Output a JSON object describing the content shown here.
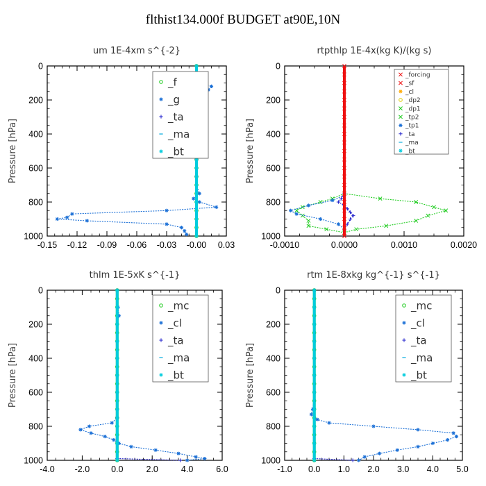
{
  "figure": {
    "title": "flthist134.000f  BUDGET at90E,10N"
  },
  "colors": {
    "green": "#22cc22",
    "blue": "#1a6fd6",
    "lightblue": "#00aadd",
    "navy": "#2222cc",
    "cyan": "#00ccdd",
    "red": "#ee1111",
    "orange": "#ffaa00",
    "yellow": "#ddcc00"
  },
  "chart_data": [
    {
      "type": "line",
      "title": "um   1E-4xm s^{-2}",
      "ylabel": "Pressure [hPa]",
      "xlim": [
        -0.15,
        0.03
      ],
      "ylim": [
        1000,
        0
      ],
      "xticks": [
        -0.15,
        -0.12,
        -0.09,
        -0.06,
        -0.03,
        0.0,
        0.03
      ],
      "xtick_labels": [
        "-0.15",
        "-0.12",
        "-0.09",
        "-0.06",
        "-0.03",
        "-0.00",
        "0.03"
      ],
      "yticks": [
        0,
        200,
        400,
        600,
        800,
        1000
      ],
      "legend": {
        "position": "top-right",
        "font_size": 15,
        "entries": [
          "_f",
          "_g",
          "_ta",
          "_ma",
          "_bt"
        ]
      },
      "series": [
        {
          "name": "_f",
          "color": "#22cc22",
          "marker": "circle",
          "y": [
            0,
            50,
            100,
            150,
            200,
            250,
            300,
            350,
            400,
            450,
            500,
            550,
            600,
            650,
            700,
            750,
            800,
            850,
            900,
            950,
            1000
          ],
          "x": [
            0,
            0,
            0,
            0,
            0,
            0,
            0,
            0,
            0,
            0,
            0,
            0,
            0,
            0,
            0,
            0,
            0,
            0,
            0,
            0,
            0
          ]
        },
        {
          "name": "_g",
          "color": "#1a6fd6",
          "marker": "star",
          "y": [
            0,
            50,
            90,
            110,
            120,
            140,
            160,
            180,
            200,
            250,
            300,
            350,
            400,
            450,
            500,
            550,
            600,
            650,
            700,
            750,
            780,
            800,
            830,
            850,
            870,
            890,
            900,
            910,
            930,
            950,
            970,
            990
          ],
          "x": [
            0,
            0,
            0,
            0.01,
            0.015,
            0.012,
            0.005,
            -0.005,
            -0.002,
            0.001,
            0.002,
            0.001,
            0,
            0,
            0,
            0,
            0,
            0,
            0,
            0.003,
            -0.003,
            0.003,
            0.02,
            -0.03,
            -0.125,
            -0.13,
            -0.14,
            -0.11,
            -0.03,
            -0.015,
            -0.012,
            -0.01
          ]
        },
        {
          "name": "_bt",
          "color": "#00ccdd",
          "marker": "star",
          "y": [
            0,
            100,
            200,
            300,
            400,
            500,
            600,
            700,
            800,
            900,
            1000
          ],
          "x": [
            0,
            0,
            0,
            0,
            0,
            0,
            0,
            0,
            0,
            0,
            0
          ]
        }
      ]
    },
    {
      "type": "line",
      "title": "rtpthlp   1E-4x(kg K)/(kg s)",
      "ylabel": "Pressure [hPa]",
      "xlim": [
        -0.001,
        0.002
      ],
      "ylim": [
        1000,
        0
      ],
      "xticks": [
        -0.001,
        0.0,
        0.001,
        0.002
      ],
      "xtick_labels": [
        "-0.0010",
        "0.0000",
        "0.0010",
        "0.0020"
      ],
      "yticks": [
        0,
        200,
        400,
        600,
        800,
        1000
      ],
      "legend": {
        "position": "top-right",
        "font_size": 9,
        "entries": [
          "_forcing",
          "_sf",
          "_cl",
          "_dp2",
          "_dp1",
          "_tp2",
          "_tp1",
          "_ta",
          "_ma",
          "_bt"
        ]
      },
      "series": [
        {
          "name": "_dp1",
          "color": "#22cc22",
          "marker": "x",
          "y": [
            750,
            780,
            800,
            830,
            850,
            880,
            910,
            940,
            960,
            980
          ],
          "x": [
            0,
            0.0006,
            0.0012,
            0.0015,
            0.0017,
            0.0014,
            0.0012,
            0.0007,
            0.0002,
            0
          ]
        },
        {
          "name": "_tp2",
          "color": "#22cc22",
          "marker": "x",
          "y": [
            750,
            780,
            800,
            830,
            850,
            880,
            910,
            940,
            960,
            980
          ],
          "x": [
            0,
            -0.0002,
            -0.0004,
            -0.0007,
            -0.0008,
            -0.0007,
            -0.0006,
            -0.0006,
            -0.0003,
            0
          ]
        },
        {
          "name": "_tp1",
          "color": "#1a6fd6",
          "marker": "star",
          "y": [
            760,
            790,
            820,
            850,
            870,
            900,
            930,
            960
          ],
          "x": [
            0,
            -0.0002,
            -0.0006,
            -0.0009,
            -0.0008,
            -0.0004,
            -0.0001,
            0
          ]
        },
        {
          "name": "_ta",
          "color": "#2222cc",
          "marker": "plus",
          "y": [
            750,
            780,
            800,
            820,
            840,
            860,
            880,
            900,
            930,
            960
          ],
          "x": [
            0,
            -5e-05,
            -0.0001,
            0,
            5e-05,
            0.0001,
            0.00015,
            0.0001,
            5e-05,
            0
          ]
        },
        {
          "name": "_forcing",
          "color": "#ee1111",
          "marker": "x",
          "y": [
            0,
            50,
            100,
            150,
            200,
            250,
            300,
            350,
            400,
            450,
            500,
            550,
            600,
            650,
            700,
            750,
            800,
            850,
            900,
            950,
            1000
          ],
          "x": [
            0,
            0,
            0,
            0,
            0,
            0,
            0,
            0,
            0,
            0,
            0,
            0,
            0,
            0,
            0,
            0,
            0,
            0,
            0,
            0,
            0
          ]
        }
      ]
    },
    {
      "type": "line",
      "title": "thlm   1E-5xK s^{-1}",
      "ylabel": "Pressure [hPa]",
      "xlim": [
        -4.0,
        6.0
      ],
      "ylim": [
        1000,
        0
      ],
      "xticks": [
        -4.0,
        -2.0,
        0.0,
        2.0,
        4.0,
        6.0
      ],
      "xtick_labels": [
        "-4.0",
        "-2.0",
        "0.0",
        "2.0",
        "4.0",
        "6.0"
      ],
      "yticks": [
        0,
        200,
        400,
        600,
        800,
        1000
      ],
      "legend": {
        "position": "top-right",
        "font_size": 15,
        "entries": [
          "_mc",
          "_cl",
          "_ta",
          "_ma",
          "_bt"
        ]
      },
      "series": [
        {
          "name": "_mc",
          "color": "#22cc22",
          "marker": "circle",
          "y": [
            0,
            50,
            100,
            150,
            200,
            250,
            300,
            350,
            400,
            450,
            500,
            550,
            600,
            650,
            700,
            750,
            800,
            850,
            900,
            950,
            1000
          ],
          "x": [
            0,
            0,
            0,
            0,
            0,
            0,
            0,
            0,
            0,
            0,
            0,
            0,
            0,
            0,
            0,
            0,
            0,
            0,
            0,
            0,
            0
          ]
        },
        {
          "name": "_cl",
          "color": "#1a6fd6",
          "marker": "star",
          "y": [
            0,
            100,
            150,
            200,
            300,
            400,
            500,
            600,
            700,
            750,
            780,
            800,
            820,
            840,
            860,
            880,
            900,
            920,
            940,
            960,
            980,
            990,
            1000
          ],
          "x": [
            0,
            0.05,
            0.1,
            0,
            0,
            0,
            0,
            0,
            0,
            0,
            -0.3,
            -1.6,
            -2.1,
            -1.5,
            -0.7,
            -0.2,
            0.1,
            0.8,
            2.2,
            3.5,
            4.5,
            5.0,
            4.0
          ]
        },
        {
          "name": "_ta",
          "color": "#2222cc",
          "marker": "plus",
          "y": [
            990,
            1000
          ],
          "x": [
            0,
            3.6
          ]
        },
        {
          "name": "_bt",
          "color": "#00ccdd",
          "marker": "star",
          "y": [
            0,
            100,
            200,
            300,
            400,
            500,
            600,
            700,
            800,
            900,
            1000
          ],
          "x": [
            0,
            0,
            0,
            0,
            0,
            0,
            0,
            0,
            0,
            0,
            0
          ]
        }
      ]
    },
    {
      "type": "line",
      "title": "rtm   1E-8xkg kg^{-1} s^{-1}",
      "ylabel": "Pressure [hPa]",
      "xlim": [
        -1.0,
        5.0
      ],
      "ylim": [
        1000,
        0
      ],
      "xticks": [
        -1.0,
        0.0,
        1.0,
        2.0,
        3.0,
        4.0,
        5.0
      ],
      "xtick_labels": [
        "-1.0",
        "0.0",
        "1.0",
        "2.0",
        "3.0",
        "4.0",
        "5.0"
      ],
      "yticks": [
        0,
        200,
        400,
        600,
        800,
        1000
      ],
      "legend": {
        "position": "top-right",
        "font_size": 15,
        "entries": [
          "_mc",
          "_cl",
          "_ta",
          "_ma",
          "_bt"
        ]
      },
      "series": [
        {
          "name": "_mc",
          "color": "#22cc22",
          "marker": "circle",
          "y": [
            0,
            50,
            100,
            150,
            200,
            250,
            300,
            350,
            400,
            450,
            500,
            550,
            600,
            650,
            700,
            750,
            800,
            850,
            900,
            950,
            1000
          ],
          "x": [
            0,
            0,
            0,
            0,
            0,
            0,
            0,
            0,
            0,
            0,
            0,
            0,
            0,
            0,
            0,
            0,
            0,
            0,
            0,
            0,
            0
          ]
        },
        {
          "name": "_cl",
          "color": "#1a6fd6",
          "marker": "star",
          "y": [
            0,
            100,
            200,
            300,
            400,
            500,
            600,
            700,
            730,
            760,
            780,
            800,
            820,
            840,
            860,
            880,
            900,
            920,
            940,
            960,
            980,
            1000
          ],
          "x": [
            0,
            0,
            0,
            0,
            0,
            0,
            0,
            -0.05,
            -0.1,
            0.1,
            0.5,
            2.0,
            3.5,
            4.7,
            4.8,
            4.5,
            4.0,
            3.5,
            2.8,
            2.2,
            1.7,
            1.5
          ]
        },
        {
          "name": "_ta",
          "color": "#2222cc",
          "marker": "plus",
          "y": [
            990,
            1000
          ],
          "x": [
            0,
            1.3
          ]
        },
        {
          "name": "_bt",
          "color": "#00ccdd",
          "marker": "star",
          "y": [
            0,
            100,
            200,
            300,
            400,
            500,
            600,
            700,
            800,
            900,
            1000
          ],
          "x": [
            0,
            0,
            0,
            0,
            0,
            0,
            0,
            0,
            0,
            0,
            0
          ]
        }
      ]
    }
  ]
}
